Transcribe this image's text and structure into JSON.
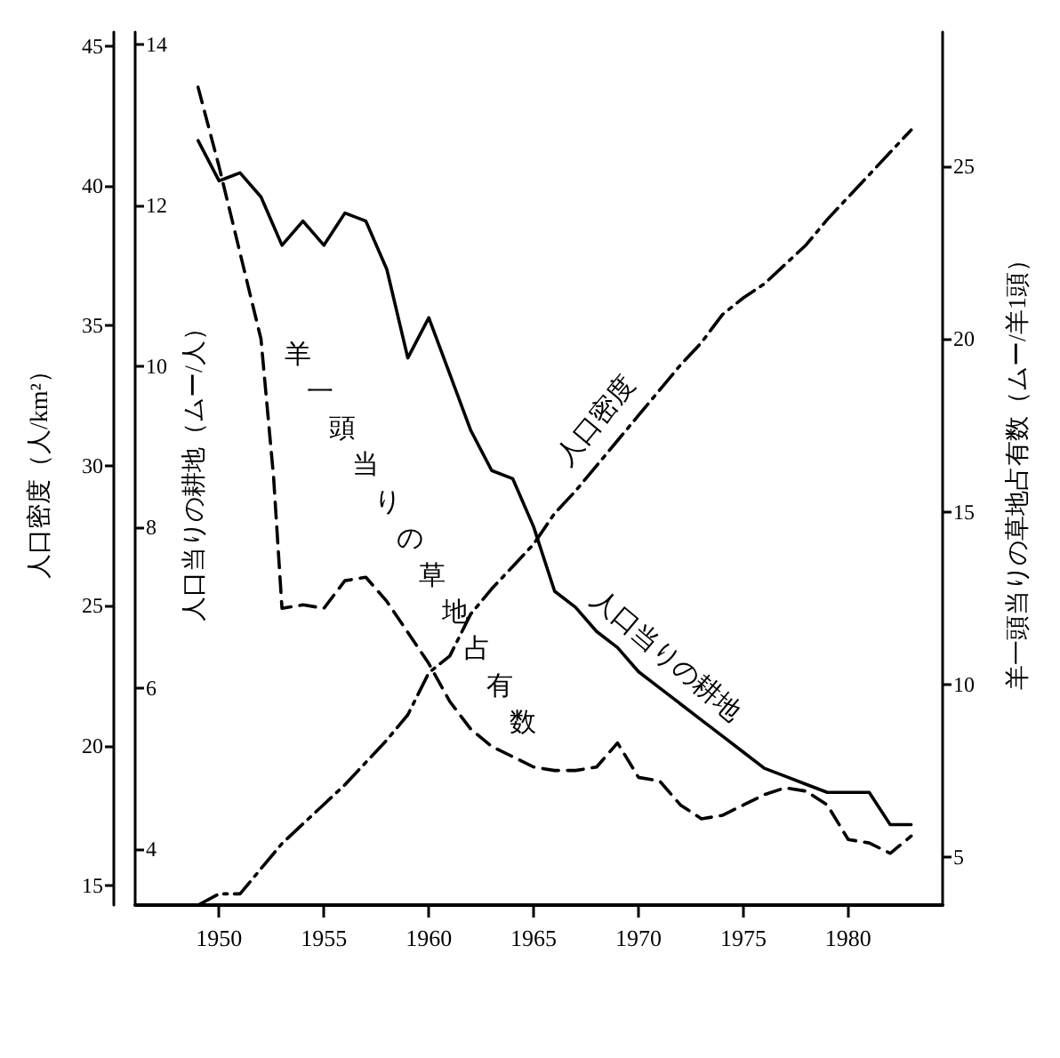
{
  "chart_data": {
    "type": "line",
    "xlim": [
      1946,
      1984.5
    ],
    "xticks": [
      1950,
      1955,
      1960,
      1965,
      1970,
      1975,
      1980
    ],
    "ylabel": "人口密度（人/km²）",
    "y2label": "人口当りの耕地（ムー/人）",
    "y3label": "羊一頭当りの草地占有数（ムー/羊1頭）",
    "ylim": [
      14.3,
      45.5
    ],
    "yticks": [
      15,
      20,
      25,
      30,
      35,
      40,
      45
    ],
    "y2lim": [
      3.3,
      14.15
    ],
    "y2ticks": [
      4,
      6,
      8,
      10,
      12,
      14
    ],
    "y3lim": [
      3.6,
      28.9
    ],
    "y3ticks": [
      5,
      10,
      15,
      20,
      25
    ],
    "grid": false,
    "legend": false,
    "marker": "none",
    "series": [
      {
        "name": "人口密度",
        "color": "#000000",
        "line_style": "dashdot",
        "axis": "y",
        "x": [
          1949,
          1950,
          1951,
          1952,
          1953,
          1954,
          1955,
          1956,
          1957,
          1958,
          1959,
          1960,
          1961,
          1962,
          1963,
          1964,
          1965,
          1966,
          1967,
          1968,
          1969,
          1970,
          1971,
          1972,
          1973,
          1974,
          1975,
          1976,
          1977,
          1978,
          1979,
          1980,
          1981,
          1982,
          1983
        ],
        "values": [
          14.3,
          14.7,
          14.7,
          15.6,
          16.5,
          17.2,
          17.9,
          18.6,
          19.4,
          20.2,
          21.1,
          22.6,
          23.2,
          24.7,
          25.6,
          26.4,
          27.2,
          28.3,
          29.1,
          30.0,
          30.9,
          31.8,
          32.7,
          33.6,
          34.4,
          35.4,
          36.0,
          36.5,
          37.2,
          37.9,
          38.8,
          39.6,
          40.4,
          41.2,
          42.0
        ]
      },
      {
        "name": "人口当りの耕地",
        "color": "#000000",
        "line_style": "solid",
        "axis": "y2",
        "x": [
          1949,
          1950,
          1951,
          1952,
          1953,
          1954,
          1955,
          1956,
          1957,
          1958,
          1959,
          1960,
          1961,
          1962,
          1963,
          1964,
          1965,
          1966,
          1967,
          1968,
          1969,
          1970,
          1971,
          1972,
          1973,
          1974,
          1975,
          1976,
          1977,
          1978,
          1979,
          1980,
          1981,
          1982,
          1983
        ],
        "values": [
          12.8,
          12.3,
          12.4,
          12.1,
          11.5,
          11.8,
          11.5,
          11.9,
          11.8,
          11.2,
          10.1,
          10.6,
          9.9,
          9.2,
          8.7,
          8.6,
          8.0,
          7.2,
          7.0,
          6.7,
          6.5,
          6.2,
          6.0,
          5.8,
          5.6,
          5.4,
          5.2,
          5.0,
          4.9,
          4.8,
          4.7,
          4.7,
          4.7,
          4.3,
          4.3
        ]
      },
      {
        "name": "羊一頭当りの草地占有数",
        "color": "#000000",
        "line_style": "dashed",
        "axis": "y3",
        "x": [
          1949,
          1950,
          1951,
          1952,
          1952.6,
          1953,
          1954,
          1955,
          1956,
          1957,
          1958,
          1959,
          1960,
          1961,
          1962,
          1963,
          1964,
          1965,
          1966,
          1967,
          1968,
          1969,
          1970,
          1971,
          1972,
          1973,
          1974,
          1975,
          1976,
          1977,
          1978,
          1979,
          1980,
          1981,
          1982,
          1983
        ],
        "values": [
          27.3,
          25.0,
          22.5,
          20.0,
          16.0,
          12.2,
          12.3,
          12.2,
          13.0,
          13.1,
          12.4,
          11.5,
          10.6,
          9.5,
          8.7,
          8.2,
          7.9,
          7.6,
          7.5,
          7.5,
          7.6,
          8.3,
          7.3,
          7.2,
          6.5,
          6.1,
          6.2,
          6.5,
          6.8,
          7.0,
          6.9,
          6.5,
          5.5,
          5.4,
          5.1,
          5.6
        ]
      }
    ]
  }
}
